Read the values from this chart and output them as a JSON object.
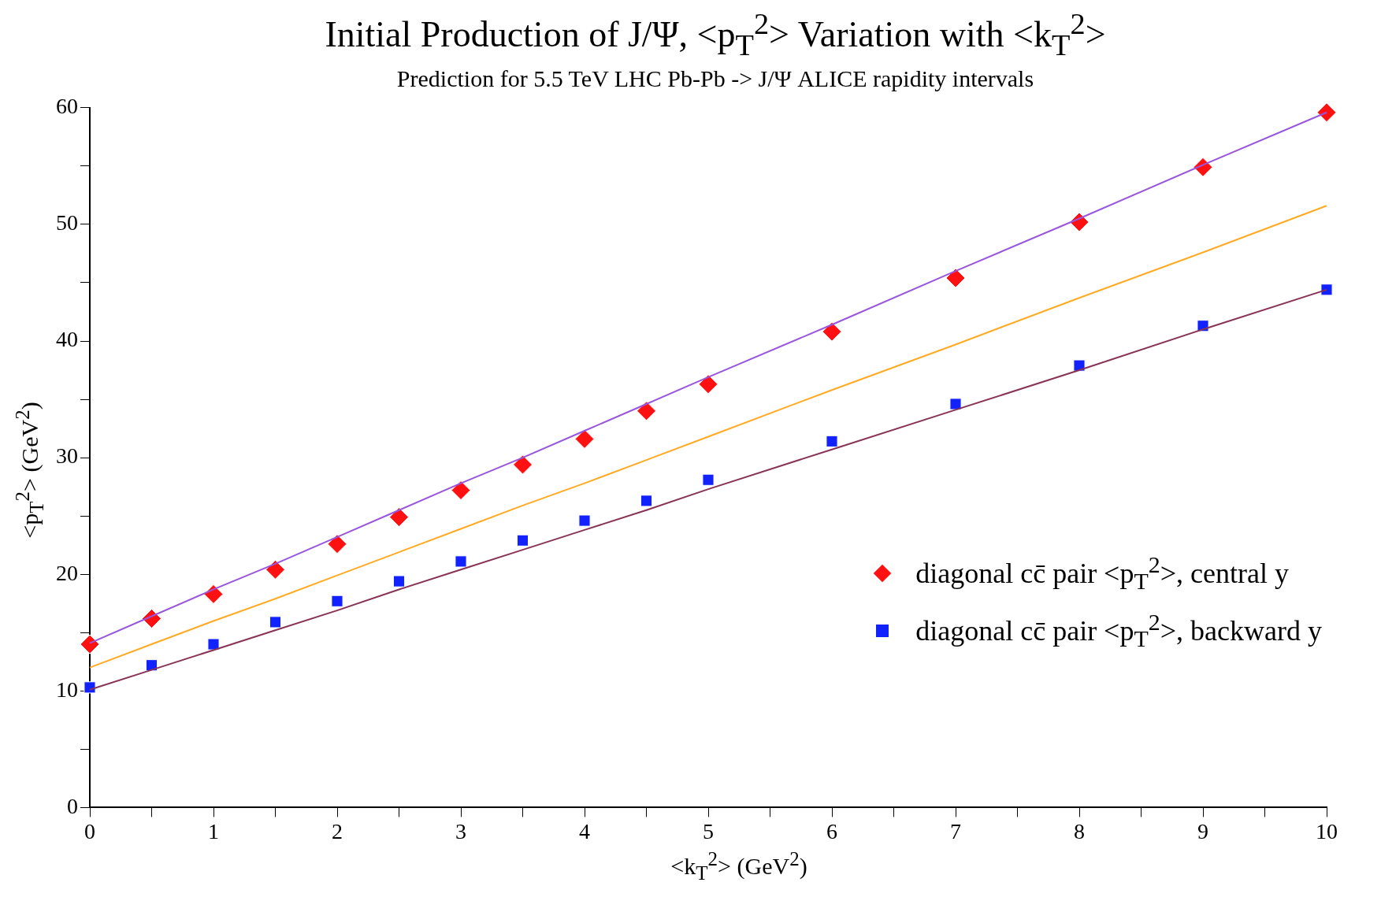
{
  "chart_data": {
    "type": "scatter",
    "title": "Initial Production of J/Ψ,  <p$_{T}$$^{2}$> Variation with <k$_{T}$$^{2}$>",
    "subtitle": "Prediction for 5.5 TeV LHC Pb-Pb -> J/Ψ ALICE rapidity intervals",
    "xlabel": "<k$_{T}$$^{2}$> (GeV$^{2}$)",
    "ylabel": "<p$_{T}$$^{2}$> (GeV$^{2}$)",
    "xlim": [
      0,
      10
    ],
    "ylim": [
      0,
      60
    ],
    "xticks": [
      0,
      {
        "value": 0.5,
        "label": null
      },
      1,
      {
        "value": 1.5,
        "label": null
      },
      2,
      {
        "value": 2.5,
        "label": null
      },
      3,
      {
        "value": 3.5,
        "label": null
      },
      4,
      {
        "value": 4.5,
        "label": null
      },
      5,
      {
        "value": 5.5,
        "label": null
      },
      6,
      {
        "value": 6.5,
        "label": null
      },
      7,
      {
        "value": 7.5,
        "label": null
      },
      8,
      {
        "value": 8.5,
        "label": null
      },
      9,
      {
        "value": 9.5,
        "label": null
      },
      10
    ],
    "yticks": [
      0,
      {
        "value": 5,
        "label": null
      },
      10,
      {
        "value": 15,
        "label": null
      },
      20,
      {
        "value": 25,
        "label": null
      },
      30,
      {
        "value": 35,
        "label": null
      },
      40,
      {
        "value": 45,
        "label": null
      },
      50,
      {
        "value": 55,
        "label": null
      },
      60
    ],
    "grid": false,
    "legend": "bottom right",
    "x": [
      0,
      0.5,
      1,
      1.5,
      2,
      2.5,
      3,
      3.5,
      4,
      4.5,
      5,
      6,
      7,
      8,
      9,
      10
    ],
    "series": [
      {
        "type": "line",
        "color": "#9955dd",
        "values": [
          14.1,
          16.4,
          18.7,
          20.9,
          23.2,
          25.5,
          27.8,
          30.0,
          32.3,
          34.6,
          36.9,
          41.4,
          46.0,
          50.5,
          55.1,
          59.6
        ],
        "marker": "none",
        "line_style": "solid"
      },
      {
        "type": "line",
        "color": "#ffaa22",
        "values": [
          12.0,
          14.0,
          16.0,
          17.9,
          19.9,
          21.9,
          23.9,
          25.9,
          27.8,
          29.8,
          31.8,
          35.8,
          39.7,
          43.7,
          47.6,
          51.6
        ],
        "marker": "none",
        "line_style": "solid"
      },
      {
        "type": "line",
        "color": "#883355",
        "values": [
          10.1,
          11.8,
          13.5,
          15.2,
          16.9,
          18.7,
          20.4,
          22.1,
          23.8,
          25.5,
          27.3,
          30.7,
          34.1,
          37.5,
          41.0,
          44.4
        ],
        "marker": "none",
        "line_style": "solid"
      },
      {
        "type": "scatter",
        "name": "diagonal cc̄ pair <p$_{T}$$^{2}$>,  central y",
        "color": "#ff1111",
        "marker": "diamond",
        "values": [
          14.0,
          16.2,
          18.3,
          20.4,
          22.6,
          24.9,
          27.2,
          29.4,
          31.6,
          34.0,
          36.3,
          40.8,
          45.4,
          50.2,
          54.9,
          59.6
        ]
      },
      {
        "type": "scatter",
        "name": "diagonal cc̄ pair <p$_{T}$$^{2}$>, backward y",
        "color": "#1122ff",
        "marker": "square",
        "values": [
          10.3,
          12.2,
          14.0,
          15.9,
          17.7,
          19.4,
          21.1,
          22.9,
          24.6,
          26.3,
          28.1,
          31.4,
          34.6,
          37.9,
          41.3,
          44.4
        ]
      }
    ]
  }
}
